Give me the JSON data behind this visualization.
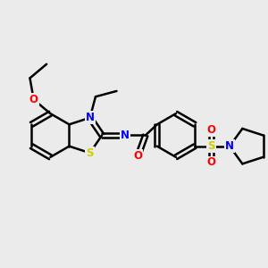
{
  "background_color": "#EBEBEB",
  "bond_color": "#000000",
  "bond_width": 1.8,
  "atom_colors": {
    "N": "#0000FF",
    "O": "#FF0000",
    "S": "#CCCC00",
    "C": "#000000"
  },
  "font_size": 8.5,
  "fig_size": [
    3.0,
    3.0
  ],
  "dpi": 100
}
